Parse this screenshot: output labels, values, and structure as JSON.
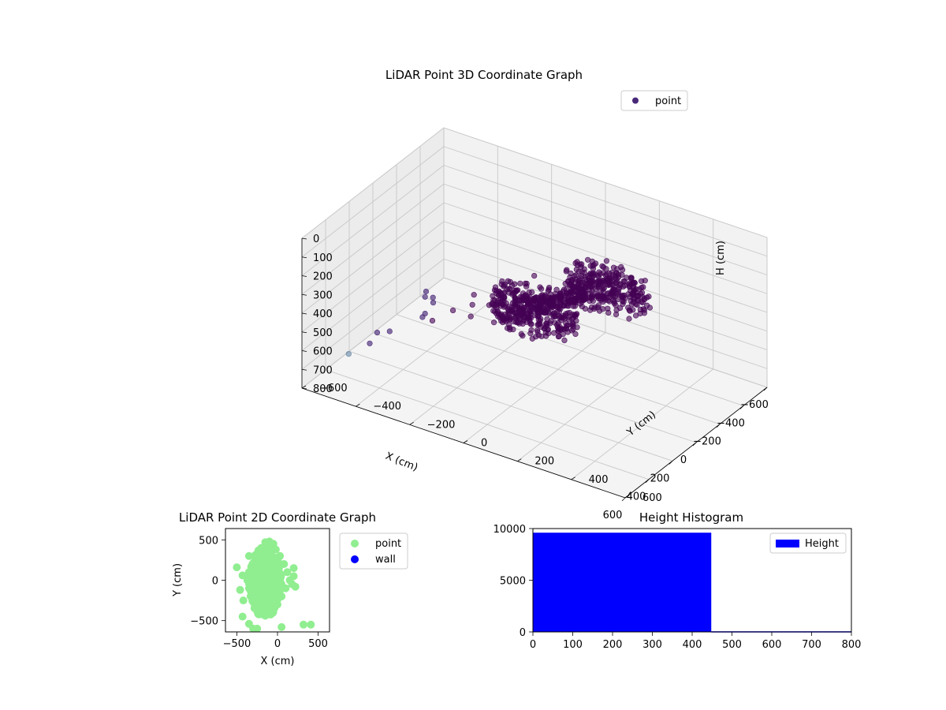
{
  "chart_data": [
    {
      "type": "scatter",
      "projection": "3d",
      "title": "LiDAR Point 3D Coordinate Graph",
      "xlabel": "X (cm)",
      "ylabel": "Y (cm)",
      "zlabel": "H (cm)",
      "xlim": [
        -600,
        600
      ],
      "ylim": [
        -600,
        600
      ],
      "zlim": [
        0,
        800
      ],
      "z_inverted": true,
      "xticks": [
        -600,
        -400,
        -200,
        0,
        200,
        400,
        600
      ],
      "yticks": [
        -600,
        -400,
        -200,
        0,
        200,
        400,
        600
      ],
      "zticks": [
        0,
        100,
        200,
        300,
        400,
        500,
        600,
        700,
        800
      ],
      "legend": {
        "labels": [
          "point"
        ],
        "position": "top-right"
      },
      "colors": {
        "dense": "#440154",
        "mid": "#482878",
        "light": "#5a7ea0"
      },
      "series": [
        {
          "name": "point",
          "points": [
            {
              "x": -150,
              "y": 180,
              "z": 230
            },
            {
              "x": -130,
              "y": 240,
              "z": 210
            },
            {
              "x": -80,
              "y": 200,
              "z": 250
            },
            {
              "x": -200,
              "y": 120,
              "z": 270
            },
            {
              "x": -170,
              "y": 260,
              "z": 190
            },
            {
              "x": -110,
              "y": 140,
              "z": 300
            },
            {
              "x": -60,
              "y": 300,
              "z": 220
            },
            {
              "x": -240,
              "y": 200,
              "z": 240
            },
            {
              "x": -190,
              "y": 320,
              "z": 200
            },
            {
              "x": -140,
              "y": 90,
              "z": 260
            },
            {
              "x": 150,
              "y": 60,
              "z": 250
            },
            {
              "x": 200,
              "y": 120,
              "z": 220
            },
            {
              "x": 250,
              "y": 40,
              "z": 280
            },
            {
              "x": 180,
              "y": -20,
              "z": 300
            },
            {
              "x": 220,
              "y": 180,
              "z": 200
            },
            {
              "x": 280,
              "y": 100,
              "z": 240
            },
            {
              "x": 130,
              "y": 150,
              "z": 230
            },
            {
              "x": 300,
              "y": 0,
              "z": 260
            },
            {
              "x": 240,
              "y": 220,
              "z": 190
            },
            {
              "x": 170,
              "y": 90,
              "z": 310
            },
            {
              "x": 20,
              "y": 100,
              "z": 250
            },
            {
              "x": -30,
              "y": 40,
              "z": 270
            },
            {
              "x": 60,
              "y": 160,
              "z": 230
            },
            {
              "x": 0,
              "y": -20,
              "z": 300
            },
            {
              "x": 50,
              "y": -50,
              "z": 320
            },
            {
              "x": 80,
              "y": 60,
              "z": 240
            },
            {
              "x": 30,
              "y": -120,
              "z": 350
            },
            {
              "x": -40,
              "y": -160,
              "z": 380
            },
            {
              "x": 70,
              "y": -200,
              "z": 420
            },
            {
              "x": 120,
              "y": -250,
              "z": 450
            },
            {
              "x": -80,
              "y": -260,
              "z": 470
            },
            {
              "x": 150,
              "y": -350,
              "z": 520
            },
            {
              "x": -100,
              "y": -420,
              "z": 600
            },
            {
              "x": 200,
              "y": -450,
              "z": 620
            },
            {
              "x": 300,
              "y": -480,
              "z": 650
            },
            {
              "x": -280,
              "y": -500,
              "z": 700
            },
            {
              "x": 100,
              "y": -540,
              "z": 720
            },
            {
              "x": -350,
              "y": -560,
              "z": 760
            },
            {
              "x": 250,
              "y": -580,
              "z": 780
            },
            {
              "x": -450,
              "y": -600,
              "z": 800
            },
            {
              "x": 180,
              "y": -300,
              "z": 500
            },
            {
              "x": 60,
              "y": -380,
              "z": 560
            },
            {
              "x": 220,
              "y": -140,
              "z": 380
            },
            {
              "x": -180,
              "y": -80,
              "z": 330
            }
          ]
        }
      ]
    },
    {
      "type": "scatter",
      "title": "LiDAR Point 2D Coordinate Graph",
      "xlabel": "X (cm)",
      "ylabel": "Y (cm)",
      "xlim": [
        -640,
        640
      ],
      "ylim": [
        -640,
        640
      ],
      "xticks": [
        -500,
        0,
        500
      ],
      "yticks": [
        -500,
        0,
        500
      ],
      "legend": {
        "labels": [
          "point",
          "wall"
        ],
        "position": "outside-right"
      },
      "colors": {
        "point": "#90ee90",
        "wall": "#0000ff"
      },
      "series": [
        {
          "name": "point",
          "points": [
            {
              "x": -200,
              "y": 400
            },
            {
              "x": -150,
              "y": 470
            },
            {
              "x": -100,
              "y": 480
            },
            {
              "x": -50,
              "y": 450
            },
            {
              "x": -250,
              "y": 300
            },
            {
              "x": -300,
              "y": 200
            },
            {
              "x": -350,
              "y": 100
            },
            {
              "x": -370,
              "y": 0
            },
            {
              "x": -350,
              "y": -100
            },
            {
              "x": -320,
              "y": -200
            },
            {
              "x": -280,
              "y": -300
            },
            {
              "x": -250,
              "y": -380
            },
            {
              "x": -200,
              "y": -420
            },
            {
              "x": -150,
              "y": -440
            },
            {
              "x": -100,
              "y": -400
            },
            {
              "x": -50,
              "y": -350
            },
            {
              "x": 0,
              "y": -300
            },
            {
              "x": 50,
              "y": -200
            },
            {
              "x": 100,
              "y": -100
            },
            {
              "x": 150,
              "y": 0
            },
            {
              "x": 120,
              "y": 100
            },
            {
              "x": 80,
              "y": 200
            },
            {
              "x": 30,
              "y": 300
            },
            {
              "x": -20,
              "y": 380
            },
            {
              "x": -150,
              "y": 200
            },
            {
              "x": -200,
              "y": 100
            },
            {
              "x": -250,
              "y": 0
            },
            {
              "x": -200,
              "y": -100
            },
            {
              "x": -150,
              "y": -200
            },
            {
              "x": -100,
              "y": -250
            },
            {
              "x": -50,
              "y": -150
            },
            {
              "x": -100,
              "y": 0
            },
            {
              "x": -50,
              "y": 100
            },
            {
              "x": 0,
              "y": 200
            },
            {
              "x": -100,
              "y": 300
            },
            {
              "x": -300,
              "y": -50
            },
            {
              "x": -250,
              "y": 150
            },
            {
              "x": -180,
              "y": -300
            },
            {
              "x": 200,
              "y": 50
            },
            {
              "x": 180,
              "y": -50
            },
            {
              "x": -500,
              "y": 160
            },
            {
              "x": -430,
              "y": 60
            },
            {
              "x": -460,
              "y": -120
            },
            {
              "x": -420,
              "y": -250
            },
            {
              "x": -430,
              "y": -450
            },
            {
              "x": -350,
              "y": -540
            },
            {
              "x": -300,
              "y": -600
            },
            {
              "x": -250,
              "y": -600
            },
            {
              "x": 50,
              "y": -580
            },
            {
              "x": 320,
              "y": -550
            },
            {
              "x": 410,
              "y": -550
            },
            {
              "x": 200,
              "y": 150
            },
            {
              "x": 220,
              "y": -80
            },
            {
              "x": -80,
              "y": 420
            },
            {
              "x": -350,
              "y": 300
            }
          ]
        },
        {
          "name": "wall",
          "points": []
        }
      ]
    },
    {
      "type": "bar",
      "title": "Height Histogram",
      "xlim": [
        0,
        800
      ],
      "ylim": [
        0,
        10000
      ],
      "xticks": [
        0,
        100,
        200,
        300,
        400,
        500,
        600,
        700,
        800
      ],
      "yticks": [
        0,
        5000,
        10000
      ],
      "legend": {
        "labels": [
          "Height"
        ],
        "position": "top-right"
      },
      "colors": {
        "bar": "#0000ff"
      },
      "bins": [
        {
          "start": 0,
          "end": 448,
          "count": 9600
        },
        {
          "start": 448,
          "end": 800,
          "count": 60
        }
      ]
    }
  ]
}
